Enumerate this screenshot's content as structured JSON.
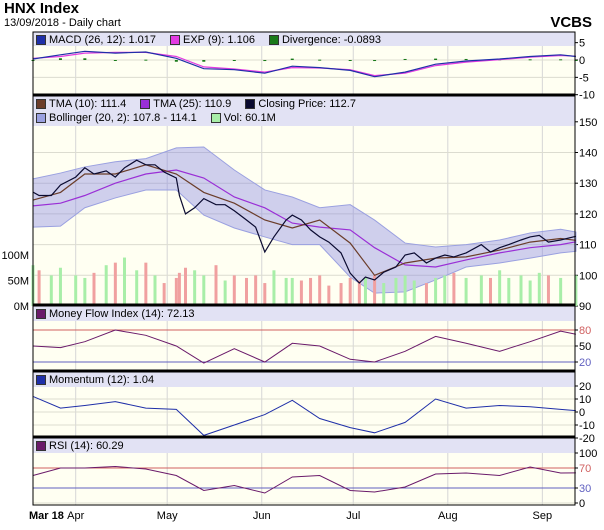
{
  "header": {
    "title": "HNX Index",
    "subtitle": "13/09/2018 - Daily chart",
    "brand": "VCBS"
  },
  "chart_data": [
    {
      "type": "line",
      "panel": "MACD",
      "legend": [
        {
          "label": "MACD (26, 12): 1.017",
          "color": "#1f2fa8"
        },
        {
          "label": "EXP (9): 1.106",
          "color": "#e23be2"
        },
        {
          "label": "Divergence: -0.0893",
          "color": "#1a7a1a"
        }
      ],
      "y_ticks": [
        "5",
        "0",
        "-5",
        "-10"
      ],
      "ylim": [
        -10,
        8
      ],
      "x": [
        "2018-03-18",
        "2018-03-27",
        "2018-04-04",
        "2018-04-14",
        "2018-04-24",
        "2018-05-04",
        "2018-05-13",
        "2018-05-23",
        "2018-06-02",
        "2018-06-11",
        "2018-06-20",
        "2018-06-30",
        "2018-07-08",
        "2018-07-18",
        "2018-07-28",
        "2018-08-07",
        "2018-08-18",
        "2018-08-28",
        "2018-09-07",
        "2018-09-12"
      ],
      "series": [
        {
          "name": "MACD (26, 12)",
          "values": [
            0.3,
            1.5,
            2.5,
            2.0,
            2.3,
            0.5,
            -2.5,
            -2.8,
            -3.8,
            -1.8,
            -2.2,
            -3.0,
            -4.8,
            -3.5,
            -1.2,
            -0.3,
            0.3,
            1.0,
            1.5,
            1.017
          ]
        },
        {
          "name": "EXP (9)",
          "values": [
            0.5,
            1.0,
            2.0,
            2.2,
            2.2,
            1.0,
            -2.0,
            -2.6,
            -3.5,
            -2.2,
            -2.3,
            -2.8,
            -4.5,
            -3.8,
            -1.6,
            -0.6,
            0.1,
            0.8,
            1.3,
            1.106
          ]
        },
        {
          "name": "Divergence",
          "values": [
            -0.2,
            0.5,
            0.5,
            -0.2,
            0.1,
            -0.5,
            -0.5,
            -0.2,
            -0.3,
            0.4,
            0.1,
            -0.2,
            -0.3,
            0.3,
            0.4,
            0.3,
            0.2,
            0.2,
            0.2,
            -0.0893
          ]
        }
      ]
    },
    {
      "type": "line",
      "panel": "Price",
      "legend": [
        {
          "label": "TMA (10): 111.4",
          "color": "#6b3d2a"
        },
        {
          "label": "TMA (25): 110.9",
          "color": "#9a2fd6"
        },
        {
          "label": "Closing Price: 112.7",
          "color": "#0a0a30"
        },
        {
          "label": "Bollinger (20, 2): 107.8 - 114.1",
          "color": "#9aa0e0"
        },
        {
          "label": "Vol: 60.1M",
          "color": "#a8eea8"
        }
      ],
      "y_ticks": [
        "150",
        "140",
        "130",
        "120",
        "110",
        "100",
        "90"
      ],
      "ylim": [
        90,
        150
      ],
      "volume_ticks": [
        "100M",
        "50M",
        "0M"
      ],
      "x_ticks": [
        "Mar 18",
        "Apr",
        "May",
        "Jun",
        "Jul",
        "Aug",
        "Sep"
      ],
      "close": {
        "x": [
          "2018-03-18",
          "2018-03-20",
          "2018-03-24",
          "2018-03-27",
          "2018-04-01",
          "2018-04-04",
          "2018-04-07",
          "2018-04-11",
          "2018-04-14",
          "2018-04-17",
          "2018-04-21",
          "2018-04-24",
          "2018-04-27",
          "2018-04-30",
          "2018-05-04",
          "2018-05-05",
          "2018-05-07",
          "2018-05-10",
          "2018-05-13",
          "2018-05-17",
          "2018-05-20",
          "2018-05-23",
          "2018-05-27",
          "2018-05-30",
          "2018-06-02",
          "2018-06-05",
          "2018-06-09",
          "2018-06-11",
          "2018-06-14",
          "2018-06-17",
          "2018-06-20",
          "2018-06-23",
          "2018-06-27",
          "2018-06-30",
          "2018-07-03",
          "2018-07-05",
          "2018-07-08",
          "2018-07-11",
          "2018-07-15",
          "2018-07-18",
          "2018-07-21",
          "2018-07-25",
          "2018-07-28",
          "2018-07-31",
          "2018-08-03",
          "2018-08-07",
          "2018-08-12",
          "2018-08-15",
          "2018-08-18",
          "2018-08-21",
          "2018-08-25",
          "2018-08-28",
          "2018-08-31",
          "2018-09-03",
          "2018-09-07",
          "2018-09-12"
        ],
        "values": [
          127.1,
          126,
          126,
          129.4,
          132,
          135,
          133,
          134,
          132,
          135,
          137.5,
          136,
          136,
          133.6,
          131.7,
          126,
          120,
          122,
          125,
          123,
          123,
          121,
          118,
          115.7,
          107.6,
          112.5,
          118,
          119.6,
          118,
          114.8,
          112.5,
          110.8,
          107.3,
          100.7,
          97.5,
          99.4,
          98.5,
          101,
          102.7,
          106.6,
          107.3,
          104,
          105.6,
          106.6,
          106,
          107.3,
          110,
          107.6,
          109,
          110,
          111.5,
          112.5,
          113,
          110.8,
          111.5,
          112.7
        ],
        "volume_millions": [
          80,
          70,
          60,
          75,
          60,
          55,
          65,
          80,
          85,
          95,
          70,
          85,
          60,
          45,
          55,
          65,
          75,
          70,
          60,
          80,
          50,
          60,
          55,
          60,
          45,
          70,
          55,
          55,
          50,
          55,
          60,
          40,
          45,
          55,
          50,
          55,
          60,
          45,
          55,
          60,
          50,
          45,
          55,
          60,
          65,
          55,
          60,
          55,
          70,
          55,
          60,
          50,
          65,
          60,
          55,
          60.1
        ]
      },
      "smooth_x": [
        "2018-03-18",
        "2018-03-27",
        "2018-04-04",
        "2018-04-14",
        "2018-04-24",
        "2018-05-04",
        "2018-05-13",
        "2018-05-23",
        "2018-06-02",
        "2018-06-11",
        "2018-06-20",
        "2018-06-30",
        "2018-07-08",
        "2018-07-18",
        "2018-07-28",
        "2018-08-07",
        "2018-08-18",
        "2018-08-28",
        "2018-09-07",
        "2018-09-12"
      ],
      "tma10": [
        124.5,
        127,
        133,
        133,
        136,
        133,
        127,
        123.5,
        118,
        115.4,
        118,
        110.5,
        100,
        104,
        105.6,
        106,
        108.2,
        110.8,
        112,
        111.4
      ],
      "tma25": [
        122.6,
        123.5,
        126,
        130,
        133,
        134.3,
        131.7,
        125.5,
        122,
        117,
        115.7,
        114.8,
        109,
        103.4,
        102.7,
        105,
        107.3,
        109,
        110,
        110.9
      ],
      "bollinger_upper": [
        131.4,
        133.3,
        135.3,
        137,
        138,
        141.5,
        141.8,
        134.3,
        127.8,
        125.5,
        122,
        123,
        118,
        110.5,
        109.2,
        110,
        111.5,
        113.8,
        115,
        114.1
      ],
      "bollinger_lower": [
        115.7,
        116,
        122,
        125.2,
        127.8,
        127.8,
        119.6,
        115.4,
        112.5,
        110,
        110,
        99.4,
        94.2,
        94.6,
        98.5,
        102.7,
        104,
        105.6,
        107.3,
        107.8
      ]
    },
    {
      "type": "line",
      "panel": "MFI",
      "legend": [
        {
          "label": "Money Flow Index (14): 72.13",
          "color": "#6a1a6a"
        }
      ],
      "y_ticks": [
        "80",
        "50",
        "20"
      ],
      "ylim": [
        0,
        100
      ],
      "thresholds": [
        80,
        20
      ],
      "values": [
        50,
        47,
        58,
        80,
        70,
        50,
        18,
        45,
        20,
        55,
        50,
        25,
        20,
        40,
        68,
        55,
        40,
        58,
        78,
        72.13
      ]
    },
    {
      "type": "line",
      "panel": "Momentum",
      "legend": [
        {
          "label": "Momentum (12): 1.04",
          "color": "#1f2fa8"
        }
      ],
      "y_ticks": [
        "20",
        "10",
        "0",
        "-10",
        "-20"
      ],
      "ylim": [
        -20,
        20
      ],
      "values": [
        12,
        3,
        5,
        8,
        3,
        2,
        -18,
        -10,
        -2,
        9,
        -5,
        -12,
        -16,
        -8,
        10,
        3,
        5,
        4,
        2,
        1.04
      ]
    },
    {
      "type": "line",
      "panel": "RSI",
      "legend": [
        {
          "label": "RSI (14): 60.29",
          "color": "#6a1a6a"
        }
      ],
      "y_ticks": [
        "100",
        "70",
        "30",
        "0"
      ],
      "ylim": [
        0,
        100
      ],
      "thresholds": [
        70,
        30
      ],
      "values": [
        55,
        70,
        70,
        73,
        68,
        55,
        25,
        35,
        20,
        52,
        55,
        25,
        22,
        32,
        58,
        60,
        55,
        72,
        60,
        60.29
      ]
    }
  ]
}
